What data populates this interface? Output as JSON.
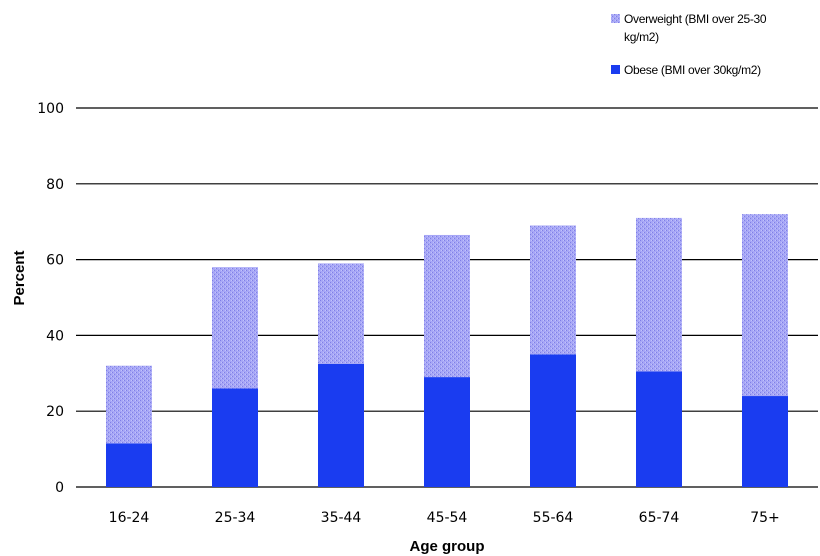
{
  "chart_data": {
    "type": "bar",
    "stacked": true,
    "categories": [
      "16-24",
      "25-34",
      "35-44",
      "45-54",
      "55-64",
      "65-74",
      "75+"
    ],
    "series": [
      {
        "name": "Obese (BMI over 30kg/m2)",
        "values": [
          11.5,
          26,
          32.5,
          29,
          35,
          30.5,
          24
        ],
        "color": "#1a3cf0"
      },
      {
        "name": "Overweight (BMI over 25-30 kg/m2)",
        "values": [
          20.5,
          32,
          26.5,
          37.5,
          34,
          40.5,
          48
        ],
        "color": "#9f9ff5"
      }
    ],
    "xlabel": "Age group",
    "ylabel": "Percent",
    "ylim": [
      0,
      100
    ],
    "yticks": [
      0,
      20,
      40,
      60,
      80,
      100
    ],
    "grid": "horizontal",
    "legend_position": "top-right"
  }
}
